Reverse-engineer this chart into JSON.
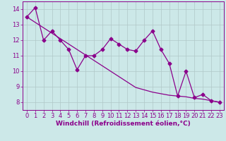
{
  "x": [
    0,
    1,
    2,
    3,
    4,
    5,
    6,
    7,
    8,
    9,
    10,
    11,
    12,
    13,
    14,
    15,
    16,
    17,
    18,
    19,
    20,
    21,
    22,
    23
  ],
  "y_line": [
    13.5,
    14.1,
    12.0,
    12.6,
    12.0,
    11.4,
    10.1,
    11.0,
    11.0,
    11.4,
    12.1,
    11.75,
    11.4,
    11.3,
    12.0,
    12.6,
    11.4,
    10.5,
    8.4,
    10.0,
    8.3,
    8.5,
    8.1,
    8.0
  ],
  "y_trend": [
    13.5,
    13.15,
    12.8,
    12.45,
    12.1,
    11.75,
    11.4,
    11.05,
    10.7,
    10.35,
    10.0,
    9.65,
    9.3,
    8.95,
    8.8,
    8.65,
    8.55,
    8.45,
    8.4,
    8.35,
    8.25,
    8.2,
    8.1,
    8.0
  ],
  "line_color": "#8B008B",
  "bg_color": "#cce8e8",
  "grid_color": "#b0c8c8",
  "xlabel": "Windchill (Refroidissement éolien,°C)",
  "ylim": [
    7.5,
    14.5
  ],
  "xlim": [
    -0.5,
    23.5
  ],
  "yticks": [
    8,
    9,
    10,
    11,
    12,
    13,
    14
  ],
  "xticks": [
    0,
    1,
    2,
    3,
    4,
    5,
    6,
    7,
    8,
    9,
    10,
    11,
    12,
    13,
    14,
    15,
    16,
    17,
    18,
    19,
    20,
    21,
    22,
    23
  ],
  "xlabel_fontsize": 6.5,
  "tick_fontsize": 6.0,
  "marker": "D",
  "markersize": 2.5,
  "linewidth_data": 0.9,
  "linewidth_trend": 0.9
}
